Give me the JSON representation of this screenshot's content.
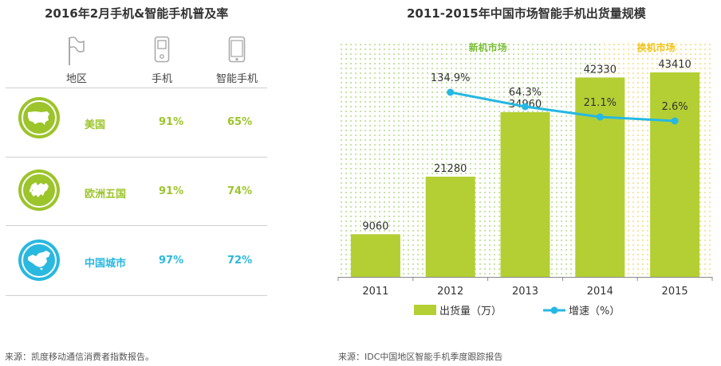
{
  "left": {
    "title": "2016年2月手机&智能手机普及率",
    "headers": {
      "region": "地区",
      "phone": "手机",
      "smartphone": "智能手机"
    },
    "header_icons": {
      "region": "flag-icon",
      "phone": "feature-phone-icon",
      "smartphone": "smartphone-icon"
    },
    "rows": [
      {
        "region": "美国",
        "phone": "91%",
        "smartphone": "65%",
        "icon": "usa-map-icon",
        "color": "#9cc42b"
      },
      {
        "region": "欧洲五国",
        "phone": "91%",
        "smartphone": "74%",
        "icon": "europe-map-icon",
        "color": "#9cc42b"
      },
      {
        "region": "中国城市",
        "phone": "97%",
        "smartphone": "72%",
        "icon": "china-map-icon",
        "color": "#29b8e0"
      }
    ],
    "source": "来源：凯度移动通信消费者指数报告。"
  },
  "chart_data": {
    "type": "bar",
    "title": "2011-2015年中国市场智能手机出货量规模",
    "categories": [
      "2011",
      "2012",
      "2013",
      "2014",
      "2015"
    ],
    "series": [
      {
        "name": "出货量（万）",
        "type": "bar",
        "values": [
          9060,
          21280,
          34960,
          42330,
          43410
        ],
        "color": "#b3cf34"
      },
      {
        "name": "增速（%）",
        "type": "line",
        "x": [
          "2012",
          "2013",
          "2014",
          "2015"
        ],
        "values": [
          134.9,
          64.3,
          21.1,
          2.6
        ],
        "labels": [
          "134.9%",
          "64.3%",
          "21.1%",
          "2.6%"
        ],
        "color": "#25b8e3"
      }
    ],
    "regions": [
      {
        "label": "新机市场",
        "from": "2011",
        "to": "2014",
        "color": "#7bbf3a"
      },
      {
        "label": "换机市场",
        "from": "2014",
        "to": "2015",
        "color": "#f2c318"
      }
    ],
    "ylim": [
      0,
      50000
    ],
    "grid": false,
    "legend_position": "bottom"
  },
  "right": {
    "source": "来源：IDC中国地区智能手机季度跟踪报告"
  }
}
